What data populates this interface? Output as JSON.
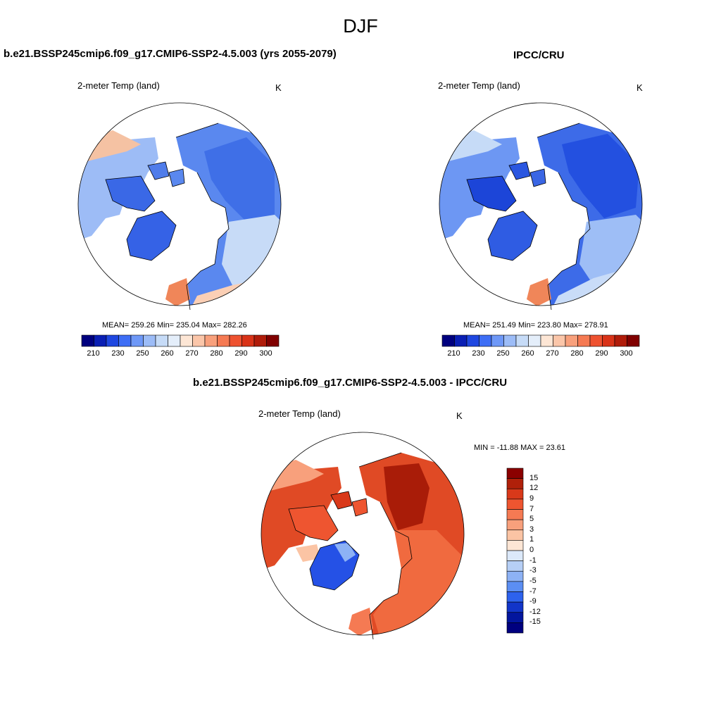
{
  "main_title": "DJF",
  "panels": [
    {
      "title": "b.e21.BSSP245cmip6.f09_g17.CMIP6-SSP2-4.5.003 (yrs 2055-2079)",
      "variable": "2-meter Temp (land)",
      "units": "K",
      "stats": "MEAN= 259.26  Min= 235.04  Max= 282.26"
    },
    {
      "title": "IPCC/CRU",
      "variable": "2-meter Temp (land)",
      "units": "K",
      "stats": "MEAN= 251.49  Min= 223.80  Max= 278.91"
    },
    {
      "title": "b.e21.BSSP245cmip6.f09_g17.CMIP6-SSP2-4.5.003 - IPCC/CRU",
      "variable": "2-meter Temp (land)",
      "units": "K",
      "stats": "MIN = -11.88 MAX =  23.61"
    }
  ],
  "abs_colorbar": {
    "labels": [
      "210",
      "230",
      "250",
      "260",
      "270",
      "280",
      "290",
      "300"
    ],
    "colors": [
      "#00007f",
      "#0a1fb4",
      "#1f47e0",
      "#3e6ef5",
      "#6e98f7",
      "#9cbcf7",
      "#c6dbf7",
      "#e4eefa",
      "#fde6d5",
      "#fbc6a9",
      "#f8a07c",
      "#f57a53",
      "#ee5230",
      "#d93318",
      "#b01c0a",
      "#800000"
    ]
  },
  "diff_colorbar": {
    "labels": [
      "15",
      "12",
      "9",
      "7",
      "5",
      "3",
      "1",
      "0",
      "-1",
      "-3",
      "-5",
      "-7",
      "-9",
      "-12",
      "-15"
    ],
    "colors": [
      "#8b0000",
      "#b0200a",
      "#d9391a",
      "#ee5530",
      "#f57a53",
      "#f8a07c",
      "#fbc4a4",
      "#fde6d5",
      "#dce9fa",
      "#b6cff6",
      "#8db2f5",
      "#5b8ef3",
      "#2d62ee",
      "#1235c9",
      "#03169e",
      "#00007f"
    ]
  },
  "map_colors": {
    "ocean": "#ffffff",
    "coast": "#000000",
    "abs_cold": "#2f62e8",
    "abs_mid": "#7aa3f4",
    "abs_cool": "#c8dcf8",
    "abs_warm": "#fbd1b8",
    "abs_hot": "#f18c62",
    "diff_high": "#e14a25",
    "diff_max": "#a51a08",
    "diff_mid": "#f57a53",
    "diff_neg": "#2551e6"
  }
}
